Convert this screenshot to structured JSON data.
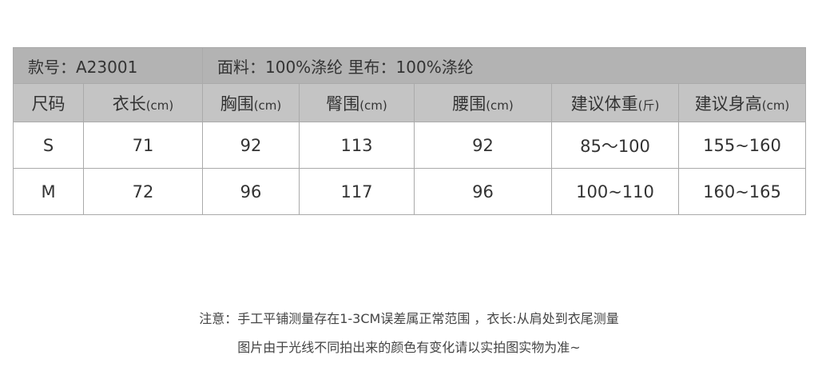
{
  "header": {
    "style_no": "款号：A23001",
    "fabric": "面料：100%涤纶 里布：100%涤纶"
  },
  "columns": [
    {
      "label": "尺码",
      "unit": ""
    },
    {
      "label": "衣长",
      "unit": "(cm)"
    },
    {
      "label": "胸围",
      "unit": "(cm)"
    },
    {
      "label": "臀围",
      "unit": "(cm)"
    },
    {
      "label": "腰围",
      "unit": "(cm)"
    },
    {
      "label": "建议体重",
      "unit": "(斤)"
    },
    {
      "label": "建议身高",
      "unit": "(cm)"
    }
  ],
  "rows": [
    [
      "S",
      "71",
      "92",
      "113",
      "92",
      "85～100",
      "155~160"
    ],
    [
      "M",
      "72",
      "96",
      "117",
      "96",
      "100~110",
      "160~165"
    ]
  ],
  "notes": {
    "line1": "注意：手工平铺测量存在1-3CM误差属正常范围 ，衣长:从肩处到衣尾测量",
    "line2": "图片由于光线不同拍出来的颜色有变化请以实拍图实物为准~"
  },
  "colors": {
    "title_bg": "#b3b3b3",
    "header_bg": "#c4c4c4",
    "border": "#aaaaaa"
  }
}
